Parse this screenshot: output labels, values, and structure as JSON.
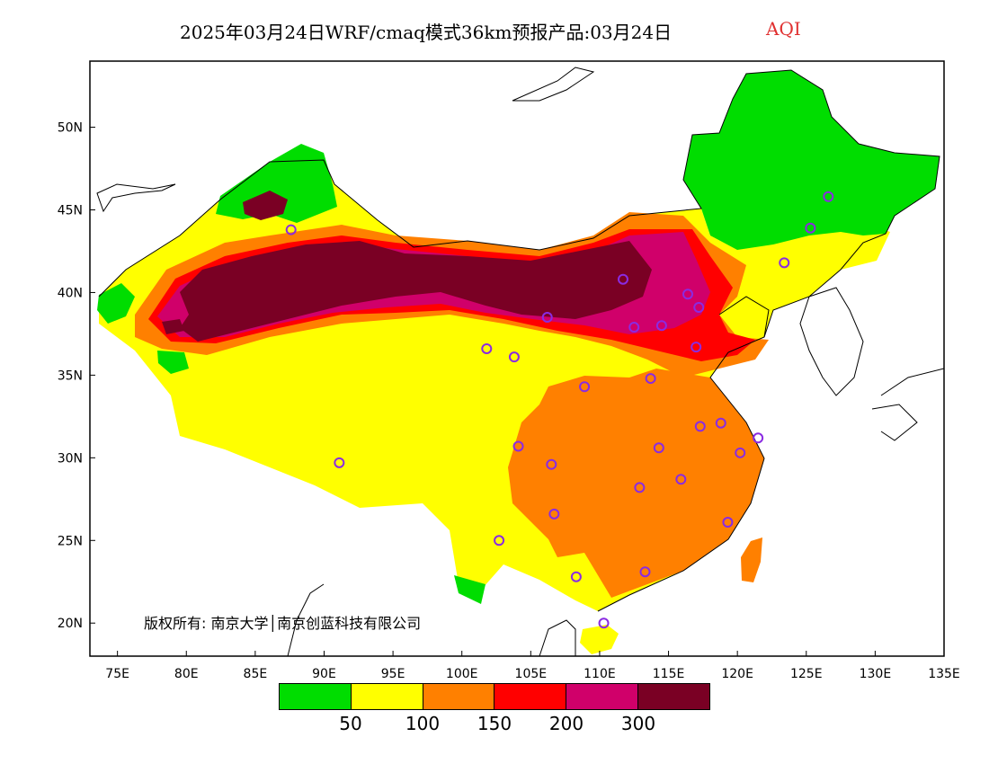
{
  "title": {
    "main": "2025年03月24日WRF/cmaq模式36km预报产品:03月24日",
    "variable": "AQI"
  },
  "map": {
    "lon_range": [
      73,
      135
    ],
    "lat_range": [
      18,
      54
    ],
    "x_ticks": [
      "75E",
      "80E",
      "85E",
      "90E",
      "95E",
      "100E",
      "105E",
      "110E",
      "115E",
      "120E",
      "125E",
      "130E",
      "135E"
    ],
    "x_tick_values": [
      75,
      80,
      85,
      90,
      95,
      100,
      105,
      110,
      115,
      120,
      125,
      130,
      135
    ],
    "y_ticks": [
      "20N",
      "25N",
      "30N",
      "35N",
      "40N",
      "45N",
      "50N"
    ],
    "y_tick_values": [
      20,
      25,
      30,
      35,
      40,
      45,
      50
    ],
    "colors": {
      "good": "#00dd00",
      "moderate": "#ffff00",
      "usg": "#ff8000",
      "unhealthy": "#ff0000",
      "very_unhealthy": "#d0006a",
      "hazardous": "#7a0024",
      "station": "#8a2be2"
    },
    "stations": [
      {
        "lon": 87.6,
        "lat": 43.8
      },
      {
        "lon": 91.1,
        "lat": 29.7
      },
      {
        "lon": 101.8,
        "lat": 36.6
      },
      {
        "lon": 103.8,
        "lat": 36.1
      },
      {
        "lon": 106.2,
        "lat": 38.5
      },
      {
        "lon": 111.7,
        "lat": 40.8
      },
      {
        "lon": 112.5,
        "lat": 37.9
      },
      {
        "lon": 114.5,
        "lat": 38.0
      },
      {
        "lon": 116.4,
        "lat": 39.9
      },
      {
        "lon": 117.2,
        "lat": 39.1
      },
      {
        "lon": 117.0,
        "lat": 36.7
      },
      {
        "lon": 113.7,
        "lat": 34.8
      },
      {
        "lon": 108.9,
        "lat": 34.3
      },
      {
        "lon": 104.1,
        "lat": 30.7
      },
      {
        "lon": 106.5,
        "lat": 29.6
      },
      {
        "lon": 106.7,
        "lat": 26.6
      },
      {
        "lon": 102.7,
        "lat": 25.0
      },
      {
        "lon": 108.3,
        "lat": 22.8
      },
      {
        "lon": 110.3,
        "lat": 20.0
      },
      {
        "lon": 113.3,
        "lat": 23.1
      },
      {
        "lon": 112.9,
        "lat": 28.2
      },
      {
        "lon": 114.3,
        "lat": 30.6
      },
      {
        "lon": 115.9,
        "lat": 28.7
      },
      {
        "lon": 117.3,
        "lat": 31.9
      },
      {
        "lon": 118.8,
        "lat": 32.1
      },
      {
        "lon": 120.2,
        "lat": 30.3
      },
      {
        "lon": 121.5,
        "lat": 31.2
      },
      {
        "lon": 119.3,
        "lat": 26.1
      },
      {
        "lon": 123.4,
        "lat": 41.8
      },
      {
        "lon": 125.3,
        "lat": 43.9
      },
      {
        "lon": 126.6,
        "lat": 45.8
      }
    ]
  },
  "copyright": "版权所有: 南京大学│南京创蓝科技有限公司",
  "legend": {
    "bins": [
      {
        "color": "#00dd00"
      },
      {
        "color": "#ffff00"
      },
      {
        "color": "#ff8000"
      },
      {
        "color": "#ff0000"
      },
      {
        "color": "#d0006a"
      },
      {
        "color": "#7a0024"
      }
    ],
    "labels": [
      "50",
      "100",
      "150",
      "200",
      "300"
    ]
  }
}
